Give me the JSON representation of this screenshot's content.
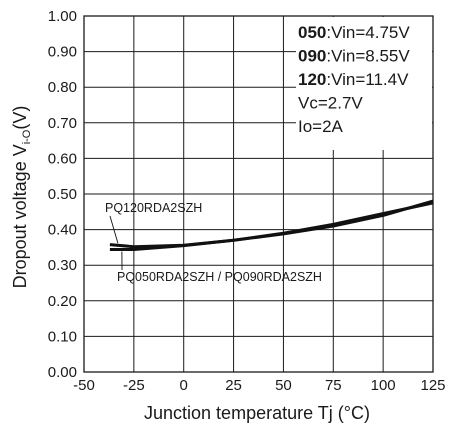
{
  "chart_data": {
    "type": "line",
    "xlabel": "Junction temperature Tj (°C)",
    "ylabel": {
      "main": "Dropout voltage V",
      "sub": "i-O",
      "unit": "(V)"
    },
    "xlim": [
      -50,
      125
    ],
    "ylim": [
      0.0,
      1.0
    ],
    "x_ticks": [
      -50,
      -25,
      0,
      25,
      50,
      75,
      100,
      125
    ],
    "x_tick_labels": [
      "-50",
      "-25",
      "0",
      "25",
      "50",
      "75",
      "100",
      "125"
    ],
    "y_ticks": [
      0.0,
      0.1,
      0.2,
      0.3,
      0.4,
      0.5,
      0.6,
      0.7,
      0.8,
      0.9,
      1.0
    ],
    "y_tick_labels": [
      "0.00",
      "0.10",
      "0.20",
      "0.30",
      "0.40",
      "0.50",
      "0.60",
      "0.70",
      "0.80",
      "0.90",
      "1.00"
    ],
    "grid": true,
    "series": [
      {
        "name": "PQ120RDA2SZH",
        "x": [
          -37,
          -25,
          0,
          25,
          50,
          75,
          100,
          125
        ],
        "values": [
          0.358,
          0.352,
          0.356,
          0.37,
          0.388,
          0.41,
          0.44,
          0.48
        ]
      },
      {
        "name": "PQ050RDA2SZH / PQ090RDA2SZH",
        "x": [
          -37,
          -25,
          0,
          25,
          50,
          75,
          100,
          125
        ],
        "values": [
          0.344,
          0.344,
          0.355,
          0.37,
          0.39,
          0.415,
          0.445,
          0.475
        ]
      }
    ],
    "conditions": [
      {
        "bold": "050",
        "rest": ":Vin=4.75V"
      },
      {
        "bold": "090",
        "rest": ":Vin=8.55V"
      },
      {
        "bold": "120",
        "rest": ":Vin=11.4V"
      },
      {
        "bold": "",
        "rest": "Vc=2.7V"
      },
      {
        "bold": "",
        "rest": "Io=2A"
      }
    ],
    "colors": {
      "line": "#111111",
      "grid": "#1a1a1a",
      "text": "#1a1a1a"
    }
  }
}
